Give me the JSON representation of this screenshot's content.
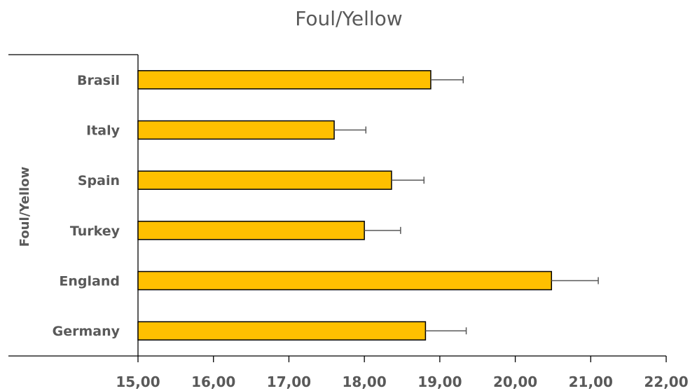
{
  "chart_data": {
    "type": "bar",
    "orientation": "horizontal",
    "title": "Foul/Yellow",
    "xlabel": "",
    "ylabel": "Foul/Yellow",
    "categories": [
      "Brasil",
      "Italy",
      "Spain",
      "Turkey",
      "England",
      "Germany"
    ],
    "values": [
      18.88,
      17.6,
      18.36,
      18.0,
      20.48,
      18.81
    ],
    "error_plus": [
      0.43,
      0.42,
      0.43,
      0.48,
      0.62,
      0.54
    ],
    "xlim": [
      15,
      22
    ],
    "xticks": [
      "15,00",
      "16,00",
      "17,00",
      "18,00",
      "19,00",
      "20,00",
      "21,00",
      "22,00"
    ],
    "bar_color": "#FFC000",
    "grid": false,
    "legend": "none"
  }
}
